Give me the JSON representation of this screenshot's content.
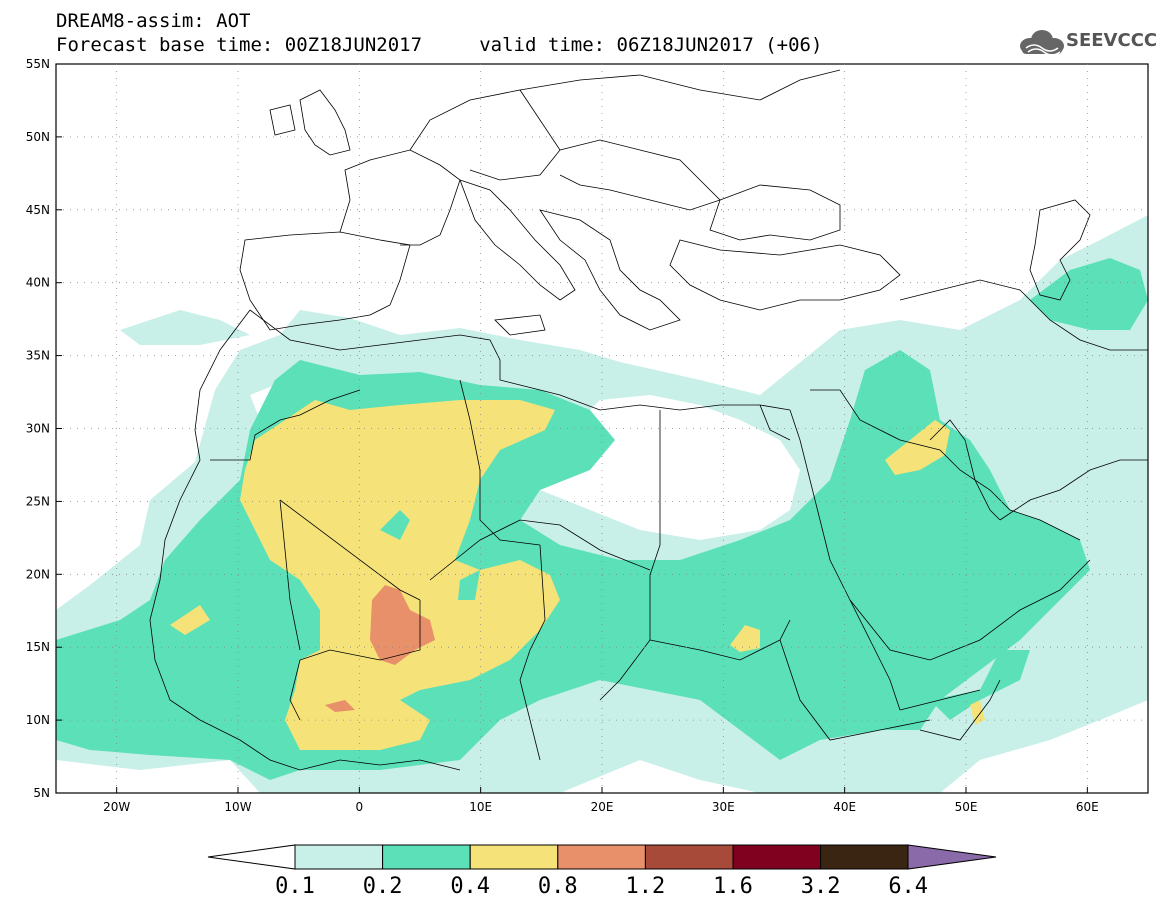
{
  "header": {
    "line1": "DREAM8-assim: AOT",
    "line2": "Forecast base time: 00Z18JUN2017     valid time: 06Z18JUN2017 (+06)"
  },
  "logo": {
    "text": "SEEVCCC",
    "icon": "cloud-logo-icon"
  },
  "map": {
    "lon_range": [
      -25,
      65
    ],
    "lat_range": [
      5,
      55
    ],
    "lat_labels": [
      "55N",
      "50N",
      "45N",
      "40N",
      "35N",
      "30N",
      "25N",
      "20N",
      "15N",
      "10N",
      "5N"
    ],
    "lon_labels": [
      "20W",
      "10W",
      "0",
      "10E",
      "20E",
      "30E",
      "40E",
      "50E",
      "60E"
    ],
    "grid": "dotted"
  },
  "colorbar": {
    "labels": [
      "0.1",
      "0.2",
      "0.4",
      "0.8",
      "1.2",
      "1.6",
      "3.2",
      "6.4"
    ],
    "colors": [
      "#c8f0e8",
      "#5ce0b8",
      "#f5e37a",
      "#e8906a",
      "#a84a3a",
      "#800020",
      "#3a2412",
      "#8a6aa8"
    ]
  },
  "colors": {
    "level1": "#c8f0e8",
    "level2": "#5ce0b8",
    "level3": "#f5e37a",
    "level4": "#e8906a",
    "border": "#000000"
  }
}
